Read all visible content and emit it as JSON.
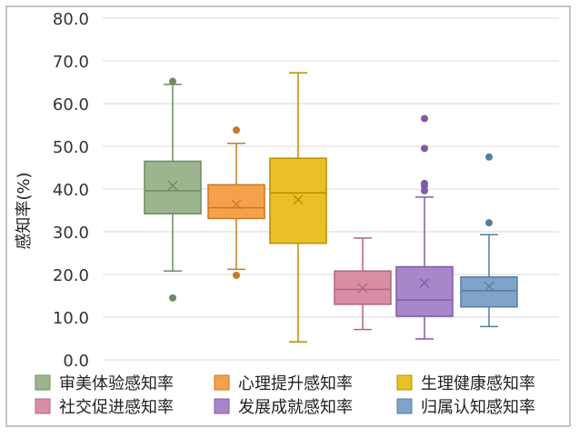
{
  "chart_data": {
    "type": "box",
    "ylabel": "感知率(%)",
    "ylim": [
      0,
      80
    ],
    "yticks": [
      "0.0",
      "10.0",
      "20.0",
      "30.0",
      "40.0",
      "50.0",
      "60.0",
      "70.0",
      "80.0"
    ],
    "grid": true,
    "legend_position": "bottom",
    "series": [
      {
        "name": "审美体验感知率",
        "color": "#9DB58E",
        "stroke": "#6E8A63",
        "whisker_low": 20.8,
        "q1": 34.2,
        "median": 39.6,
        "q3": 46.5,
        "whisker_high": 64.5,
        "mean": 40.8,
        "outliers": [
          65.2,
          14.5
        ]
      },
      {
        "name": "心理提升感知率",
        "color": "#F5A04A",
        "stroke": "#C77922",
        "whisker_low": 21.2,
        "q1": 33.1,
        "median": 35.6,
        "q3": 41.0,
        "whisker_high": 50.7,
        "mean": 36.4,
        "outliers": [
          53.8,
          19.8
        ]
      },
      {
        "name": "生理健康感知率",
        "color": "#E9C126",
        "stroke": "#B68E00",
        "whisker_low": 4.2,
        "q1": 27.3,
        "median": 39.1,
        "q3": 47.2,
        "whisker_high": 67.2,
        "mean": 37.5,
        "outliers": []
      },
      {
        "name": "社交促进感知率",
        "color": "#D88FA5",
        "stroke": "#B0667E",
        "whisker_low": 7.1,
        "q1": 13.0,
        "median": 16.5,
        "q3": 20.8,
        "whisker_high": 28.5,
        "mean": 16.8,
        "outliers": []
      },
      {
        "name": "发展成就感知率",
        "color": "#A787C9",
        "stroke": "#7E5DA5",
        "whisker_low": 4.9,
        "q1": 10.2,
        "median": 14.0,
        "q3": 21.8,
        "whisker_high": 38.1,
        "mean": 18.0,
        "outliers": [
          56.5,
          49.5,
          41.3,
          40.7,
          39.6
        ]
      },
      {
        "name": "归属认知感知率",
        "color": "#7FA3C9",
        "stroke": "#567CA4",
        "whisker_low": 7.8,
        "q1": 12.4,
        "median": 16.2,
        "q3": 19.4,
        "whisker_high": 29.3,
        "mean": 17.2,
        "outliers": [
          47.5,
          32.1
        ]
      }
    ]
  }
}
